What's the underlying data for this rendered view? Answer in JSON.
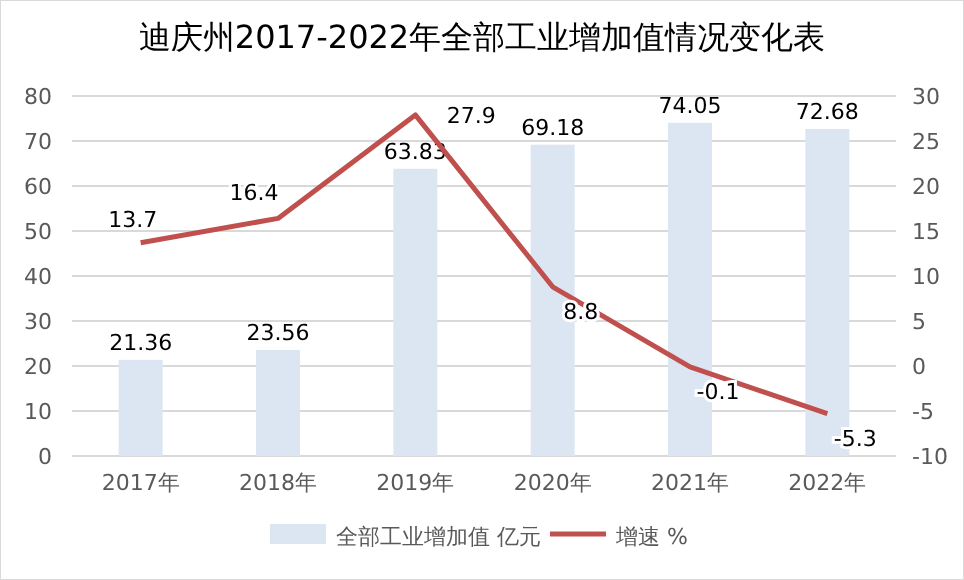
{
  "chart_data": {
    "type": "bar",
    "title": "迪庆州2017-2022年全部工业增加值情况变化表",
    "categories": [
      "2017年",
      "2018年",
      "2019年",
      "2020年",
      "2021年",
      "2022年"
    ],
    "series": [
      {
        "name": "全部工业增加值 亿元",
        "color": "#dce6f2",
        "values": [
          21.36,
          23.56,
          63.83,
          69.18,
          74.05,
          72.68
        ]
      },
      {
        "name": "增速 %",
        "type": "line",
        "axis": "y2",
        "color": "#c0504d",
        "values": [
          13.7,
          16.4,
          27.9,
          8.8,
          -0.1,
          -5.3
        ]
      }
    ],
    "ylim": [
      0,
      80
    ],
    "yticks": [
      0,
      10,
      20,
      30,
      40,
      50,
      60,
      70,
      80
    ],
    "y2lim": [
      -10,
      30
    ],
    "y2ticks": [
      -10,
      -5,
      0,
      5,
      10,
      15,
      20,
      25,
      30
    ],
    "grid": "y",
    "legend": "bottom",
    "data_labels": true,
    "marker": "none",
    "line_style": "solid"
  }
}
